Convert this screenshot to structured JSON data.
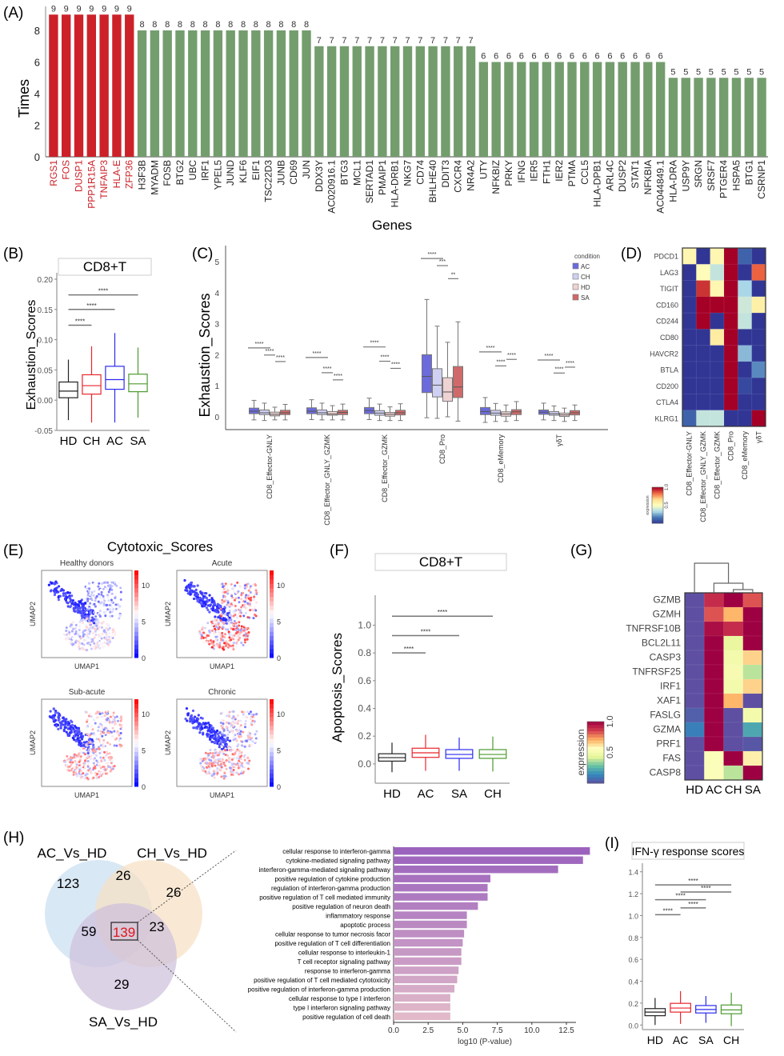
{
  "panels": {
    "a": "(A)",
    "b": "(B)",
    "c": "(C)",
    "d": "(D)",
    "e": "(E)",
    "f": "(F)",
    "g": "(G)",
    "h": "(H)",
    "i": "(I)"
  },
  "chart_data": [
    {
      "id": "A",
      "type": "bar",
      "title": "",
      "xlabel": "Genes",
      "ylabel": "Times",
      "ylim": [
        0,
        9
      ],
      "yticks": [
        0,
        2,
        4,
        6,
        8
      ],
      "highlight_color": "#cc2128",
      "bar_color": "#749d6e",
      "highlight_count": 7,
      "categories": [
        "RGS1",
        "FOS",
        "DUSP1",
        "PPP1R15A",
        "TNFAIP3",
        "HLA-E",
        "ZFP36",
        "H3F3B",
        "MYADM",
        "FOSB",
        "BTG2",
        "UBC",
        "IRF1",
        "YPEL5",
        "JUND",
        "KLF6",
        "EIF1",
        "TSC22D3",
        "JUNB",
        "CD69",
        "JUN",
        "DDX3Y",
        "AC020916.1",
        "BTG3",
        "MCL1",
        "SERTAD1",
        "PMAIP1",
        "HLA-DRB1",
        "NKG7",
        "CD74",
        "BHLHE40",
        "DDIT3",
        "CXCR4",
        "NR4A2",
        "UTY",
        "NFKBIZ",
        "PRKY",
        "IFNG",
        "IER5",
        "FTH1",
        "IER2",
        "PTMA",
        "CCL5",
        "HLA-DPB1",
        "ARL4C",
        "DUSP2",
        "STAT1",
        "NFKBIA",
        "AC044849.1",
        "HLA-DRA",
        "USP9Y",
        "SRGN",
        "SRSF7",
        "PTGER4",
        "HSPA5",
        "BTG1",
        "CSRNP1"
      ],
      "values": [
        9,
        9,
        9,
        9,
        9,
        9,
        9,
        8,
        8,
        8,
        8,
        8,
        8,
        8,
        8,
        8,
        8,
        8,
        8,
        8,
        8,
        7,
        7,
        7,
        7,
        7,
        7,
        7,
        7,
        7,
        7,
        7,
        7,
        7,
        6,
        6,
        6,
        6,
        6,
        6,
        6,
        6,
        6,
        6,
        6,
        6,
        6,
        6,
        6,
        5,
        5,
        5,
        5,
        5,
        5,
        5,
        5
      ]
    },
    {
      "id": "B",
      "type": "boxplot",
      "facet_title": "CD8+T",
      "ylabel": "Exhaustion_Scores",
      "ylim": [
        -0.05,
        0.2
      ],
      "yticks": [
        "-0.05",
        "0.00",
        "0.05",
        "0.10",
        "0.15",
        "0.20"
      ],
      "ytick_values": [
        -0.05,
        0,
        0.05,
        0.1,
        0.15,
        0.2
      ],
      "categories": [
        "HD",
        "CH",
        "AC",
        "SA"
      ],
      "colors": [
        "#222222",
        "#e8262b",
        "#2b2bf0",
        "#4d9a2e"
      ],
      "boxes": [
        {
          "min": -0.033,
          "q1": 0.004,
          "median": 0.015,
          "q3": 0.03,
          "max": 0.067
        },
        {
          "min": -0.037,
          "q1": 0.01,
          "median": 0.024,
          "q3": 0.042,
          "max": 0.089
        },
        {
          "min": -0.037,
          "q1": 0.018,
          "median": 0.034,
          "q3": 0.056,
          "max": 0.111
        },
        {
          "min": -0.029,
          "q1": 0.014,
          "median": 0.027,
          "q3": 0.043,
          "max": 0.087
        }
      ],
      "significance": [
        {
          "from": "HD",
          "to": "CH",
          "y": 0.124,
          "label": "****"
        },
        {
          "from": "HD",
          "to": "AC",
          "y": 0.15,
          "label": "****"
        },
        {
          "from": "HD",
          "to": "SA",
          "y": 0.174,
          "label": "****"
        }
      ]
    },
    {
      "id": "C",
      "type": "boxplot",
      "ylabel": "Exhaustion_Scores",
      "ylim": [
        -0.4,
        5.5
      ],
      "yticks": [
        0,
        1,
        2,
        3,
        4,
        5
      ],
      "legend_title": "condition",
      "legend_position": "top-right",
      "groups": [
        "AC",
        "CH",
        "HD",
        "SA"
      ],
      "group_colors": [
        "#6b6bdd",
        "#cfd0f2",
        "#efd2d2",
        "#d06a6a"
      ],
      "categories": [
        "CD8_Effector-GNLY",
        "CD8_Effector_GNLY_GZMK",
        "CD8_Effector_GZMK",
        "CD8_Pro",
        "CD8_eMemory",
        "γδT"
      ],
      "boxes": [
        [
          {
            "min": -0.1,
            "q1": 0.1,
            "median": 0.18,
            "q3": 0.28,
            "max": 0.53
          },
          {
            "min": -0.12,
            "q1": 0.07,
            "median": 0.13,
            "q3": 0.22,
            "max": 0.44
          },
          {
            "min": -0.1,
            "q1": 0.03,
            "median": 0.08,
            "q3": 0.15,
            "max": 0.31
          },
          {
            "min": -0.1,
            "q1": 0.07,
            "median": 0.13,
            "q3": 0.21,
            "max": 0.4
          }
        ],
        [
          {
            "min": -0.09,
            "q1": 0.1,
            "median": 0.18,
            "q3": 0.29,
            "max": 0.55
          },
          {
            "min": -0.1,
            "q1": 0.07,
            "median": 0.13,
            "q3": 0.22,
            "max": 0.44
          },
          {
            "min": -0.1,
            "q1": 0.05,
            "median": 0.09,
            "q3": 0.17,
            "max": 0.36
          },
          {
            "min": -0.1,
            "q1": 0.07,
            "median": 0.14,
            "q3": 0.21,
            "max": 0.41
          }
        ],
        [
          {
            "min": -0.09,
            "q1": 0.1,
            "median": 0.2,
            "q3": 0.3,
            "max": 0.6
          },
          {
            "min": -0.12,
            "q1": 0.05,
            "median": 0.12,
            "q3": 0.2,
            "max": 0.41
          },
          {
            "min": -0.12,
            "q1": 0.02,
            "median": 0.08,
            "q3": 0.14,
            "max": 0.32
          },
          {
            "min": -0.12,
            "q1": 0.06,
            "median": 0.13,
            "q3": 0.21,
            "max": 0.42
          }
        ],
        [
          {
            "min": -0.03,
            "q1": 0.78,
            "median": 1.3,
            "q3": 2.0,
            "max": 3.78
          },
          {
            "min": -0.05,
            "q1": 0.64,
            "median": 1.02,
            "q3": 1.55,
            "max": 2.92
          },
          {
            "min": 0.0,
            "q1": 0.5,
            "median": 0.8,
            "q3": 1.26,
            "max": 2.4
          },
          {
            "min": -0.14,
            "q1": 0.62,
            "median": 0.96,
            "q3": 1.62,
            "max": 3.06
          }
        ],
        [
          {
            "min": -0.18,
            "q1": 0.07,
            "median": 0.17,
            "q3": 0.3,
            "max": 0.62
          },
          {
            "min": -0.15,
            "q1": 0.05,
            "median": 0.12,
            "q3": 0.21,
            "max": 0.43
          },
          {
            "min": -0.15,
            "q1": 0.02,
            "median": 0.09,
            "q3": 0.16,
            "max": 0.38
          },
          {
            "min": -0.12,
            "q1": 0.07,
            "median": 0.16,
            "q3": 0.23,
            "max": 0.49
          }
        ],
        [
          {
            "min": -0.1,
            "q1": 0.08,
            "median": 0.15,
            "q3": 0.22,
            "max": 0.44
          },
          {
            "min": -0.12,
            "q1": 0.05,
            "median": 0.1,
            "q3": 0.17,
            "max": 0.35
          },
          {
            "min": -0.15,
            "q1": 0.01,
            "median": 0.06,
            "q3": 0.12,
            "max": 0.28
          },
          {
            "min": -0.12,
            "q1": 0.06,
            "median": 0.13,
            "q3": 0.2,
            "max": 0.38
          }
        ]
      ],
      "significance": [
        [
          {
            "g1": 0,
            "g2": 2,
            "y": 2.22,
            "label": "****"
          },
          {
            "g1": 1,
            "g2": 2,
            "y": 1.99,
            "label": "****"
          },
          {
            "g1": 2,
            "g2": 3,
            "y": 1.78,
            "label": "****"
          }
        ],
        [
          {
            "g1": 0,
            "g2": 2,
            "y": 1.91,
            "label": "****"
          },
          {
            "g1": 1,
            "g2": 2,
            "y": 1.42,
            "label": "****"
          },
          {
            "g1": 2,
            "g2": 3,
            "y": 1.19,
            "label": "****"
          }
        ],
        [
          {
            "g1": 0,
            "g2": 2,
            "y": 2.25,
            "label": "****"
          },
          {
            "g1": 1,
            "g2": 2,
            "y": 1.79,
            "label": "****"
          },
          {
            "g1": 2,
            "g2": 3,
            "y": 1.56,
            "label": "****"
          }
        ],
        [
          {
            "g1": 0,
            "g2": 2,
            "y": 5.1,
            "label": "****"
          },
          {
            "g1": 1,
            "g2": 2,
            "y": 4.87,
            "label": "***"
          },
          {
            "g1": 2,
            "g2": 3,
            "y": 4.45,
            "label": "**"
          }
        ],
        [
          {
            "g1": 0,
            "g2": 2,
            "y": 2.09,
            "label": "****"
          },
          {
            "g1": 1,
            "g2": 2,
            "y": 1.64,
            "label": "****"
          },
          {
            "g1": 2,
            "g2": 3,
            "y": 1.85,
            "label": "****"
          }
        ],
        [
          {
            "g1": 0,
            "g2": 2,
            "y": 1.83,
            "label": "****"
          },
          {
            "g1": 1,
            "g2": 2,
            "y": 1.41,
            "label": "****"
          },
          {
            "g1": 2,
            "g2": 3,
            "y": 1.6,
            "label": "****"
          }
        ]
      ]
    },
    {
      "id": "D",
      "type": "heatmap",
      "rows": [
        "PDCD1",
        "LAG3",
        "TIGIT",
        "CD160",
        "CD244",
        "CD80",
        "HAVCR2",
        "BTLA",
        "CD200",
        "CTLA4",
        "KLRG1"
      ],
      "columns": [
        "CD8_Effector-GNLY",
        "CD8_Effector_GNLY_GZMK",
        "CD8_Effector_GZMK",
        "CD8_Pro",
        "CD8_eMemory",
        "γδT"
      ],
      "colorbar_label": "expression",
      "colorbar_ticks": [
        "0.5",
        "1.0"
      ],
      "colorscale": "RdYlBu_r",
      "values": [
        [
          0.55,
          0.0,
          0.55,
          1.0,
          0.12,
          0.0
        ],
        [
          0.0,
          0.52,
          0.38,
          1.0,
          0.0,
          0.85
        ],
        [
          0.0,
          0.92,
          0.55,
          1.0,
          0.33,
          0.0
        ],
        [
          0.0,
          1.0,
          1.0,
          1.0,
          0.4,
          0.58
        ],
        [
          0.0,
          1.0,
          0.0,
          1.0,
          0.38,
          0.0
        ],
        [
          0.0,
          0.0,
          0.6,
          1.0,
          0.0,
          0.0
        ],
        [
          0.0,
          0.0,
          0.0,
          1.0,
          0.28,
          0.0
        ],
        [
          0.0,
          0.0,
          0.0,
          1.0,
          0.0,
          0.2
        ],
        [
          0.0,
          0.0,
          0.0,
          1.0,
          0.05,
          0.0
        ],
        [
          0.0,
          0.0,
          0.0,
          1.0,
          0.0,
          0.0
        ],
        [
          0.12,
          0.38,
          0.38,
          0.0,
          0.0,
          1.0
        ]
      ]
    },
    {
      "id": "E",
      "type": "scatter",
      "title": "Cytotoxic_Scores",
      "subplots": [
        "Healthy donors",
        "Acute",
        "Sub-acute",
        "Chronic"
      ],
      "xlabel": "UMAP1",
      "ylabel": "UMAP2",
      "colorbar_ticks": [
        "0",
        "5",
        "10"
      ],
      "colorscale": "bwr",
      "mean_score_level": [
        0.35,
        0.75,
        0.6,
        0.6
      ]
    },
    {
      "id": "F",
      "type": "boxplot",
      "facet_title": "CD8+T",
      "ylabel": "Apoptosis_Scores",
      "ylim": [
        -0.07,
        1.17
      ],
      "yticks": [
        "0.0",
        "0.2",
        "0.4",
        "0.6",
        "0.8",
        "1.0"
      ],
      "ytick_values": [
        0,
        0.2,
        0.4,
        0.6,
        0.8,
        1.0
      ],
      "categories": [
        "HD",
        "AC",
        "SA",
        "CH"
      ],
      "colors": [
        "#222222",
        "#e8262b",
        "#2b2bf0",
        "#4d9a2e"
      ],
      "boxes": [
        {
          "min": -0.06,
          "q1": 0.02,
          "median": 0.045,
          "q3": 0.073,
          "max": 0.153
        },
        {
          "min": -0.05,
          "q1": 0.047,
          "median": 0.08,
          "q3": 0.113,
          "max": 0.21
        },
        {
          "min": -0.05,
          "q1": 0.04,
          "median": 0.068,
          "q3": 0.103,
          "max": 0.19
        },
        {
          "min": -0.055,
          "q1": 0.04,
          "median": 0.068,
          "q3": 0.103,
          "max": 0.197
        }
      ],
      "significance": [
        {
          "from": "HD",
          "to": "AC",
          "y": 0.8,
          "label": "****"
        },
        {
          "from": "HD",
          "to": "SA",
          "y": 0.925,
          "label": "****"
        },
        {
          "from": "HD",
          "to": "CH",
          "y": 1.065,
          "label": "****"
        }
      ]
    },
    {
      "id": "G",
      "type": "heatmap",
      "rows": [
        "GZMB",
        "GZMH",
        "TNFRSF10B",
        "BCL2L11",
        "CASP3",
        "TNFRSF25",
        "IRF1",
        "XAF1",
        "FASLG",
        "GZMA",
        "PRF1",
        "FAS",
        "CASP8"
      ],
      "columns": [
        "HD",
        "AC",
        "CH",
        "SA"
      ],
      "colorbar_label": "expression",
      "colorbar_ticks": [
        "0.5",
        "1.0"
      ],
      "colorscale": "Spectral_r",
      "dendrogram": "top",
      "values": [
        [
          0.0,
          0.9,
          1.0,
          0.83
        ],
        [
          0.0,
          0.83,
          0.7,
          1.0
        ],
        [
          0.0,
          0.97,
          0.9,
          1.0
        ],
        [
          0.0,
          1.0,
          0.45,
          1.0
        ],
        [
          0.0,
          1.0,
          0.5,
          0.65
        ],
        [
          0.0,
          1.0,
          0.52,
          0.38
        ],
        [
          0.0,
          1.0,
          0.5,
          0.65
        ],
        [
          0.0,
          1.0,
          0.7,
          0.0
        ],
        [
          0.04,
          1.0,
          0.0,
          0.5
        ],
        [
          0.12,
          1.0,
          0.0,
          0.22
        ],
        [
          0.0,
          1.0,
          0.0,
          0.02
        ],
        [
          0.0,
          0.55,
          1.0,
          0.6
        ],
        [
          0.0,
          0.55,
          0.38,
          1.0
        ]
      ]
    },
    {
      "id": "H-venn",
      "type": "venn",
      "sets": [
        "AC_Vs_HD",
        "CH_Vs_HD",
        "SA_Vs_HD"
      ],
      "regions": {
        "AC_only": 123,
        "CH_only": 26,
        "SA_only": 29,
        "AC_CH": 26,
        "AC_SA": 59,
        "CH_SA": 23,
        "AC_CH_SA": 139
      },
      "set_colors": [
        "#cfe2f3",
        "#f7e0c2",
        "#cdbfdc"
      ],
      "highlight_color": "#e0141b"
    },
    {
      "id": "H-bar",
      "type": "bar",
      "orientation": "horizontal",
      "xlabel": "log10 (P-value)",
      "xlim": [
        0,
        15
      ],
      "xticks": [
        "0.0",
        "2.5",
        "5.0",
        "7.5",
        "10.0",
        "12.5"
      ],
      "xtick_values": [
        0,
        2.5,
        5,
        7.5,
        10,
        12.5
      ],
      "categories": [
        "cellular response to interferon-gamma",
        "cytokine-mediated signaling pathway",
        "interferon-gamma-mediated signaling pathway",
        "positive regulation of cytokine production",
        "regulation of interferon-gamma production",
        "positive regulation of T cell mediated immunity",
        "positive regulation of neuron death",
        "inflammatory response",
        "apoptotic process",
        "cellular response to tumor necrosis facor",
        "positive regulation of T cell differentiation",
        "cellular response to interleukin-1",
        "T cell receptor signaling pathway",
        "response to interferon-gamma",
        "positive regulation of T cell mediated cytotoxicity",
        "positive regulation of interferon-gamma production",
        "cellular response to type I interferon",
        "type I interferon signaling pathway",
        "positive regulation of cell death"
      ],
      "values": [
        14.2,
        13.7,
        11.9,
        7.0,
        6.8,
        6.8,
        6.1,
        5.3,
        5.3,
        5.1,
        5.0,
        4.9,
        4.9,
        4.7,
        4.6,
        4.4,
        4.1,
        4.1,
        4.1
      ],
      "color_start": "#9b63bd",
      "color_end": "#e1b9c9"
    },
    {
      "id": "I",
      "type": "boxplot",
      "facet_title": "IFN-γ response scores",
      "ylim": [
        -0.02,
        1.42
      ],
      "yticks": [
        "0.0",
        "0.2",
        "0.4",
        "0.6",
        "0.8",
        "1.0",
        "1.2",
        "1.4"
      ],
      "ytick_values": [
        0,
        0.2,
        0.4,
        0.6,
        0.8,
        1.0,
        1.2,
        1.4
      ],
      "categories": [
        "HD",
        "AC",
        "SA",
        "CH"
      ],
      "colors": [
        "#222222",
        "#e8262b",
        "#2b2bf0",
        "#4d9a2e"
      ],
      "boxes": [
        {
          "min": 0.0,
          "q1": 0.085,
          "median": 0.118,
          "q3": 0.15,
          "max": 0.247
        },
        {
          "min": 0.01,
          "q1": 0.118,
          "median": 0.155,
          "q3": 0.198,
          "max": 0.31
        },
        {
          "min": 0.02,
          "q1": 0.11,
          "median": 0.142,
          "q3": 0.178,
          "max": 0.265
        },
        {
          "min": -0.01,
          "q1": 0.103,
          "median": 0.138,
          "q3": 0.183,
          "max": 0.296
        }
      ],
      "significance": [
        {
          "from": "HD",
          "to": "AC",
          "y": 1.008,
          "label": "****"
        },
        {
          "from": "AC",
          "to": "SA",
          "y": 1.07,
          "label": "****"
        },
        {
          "from": "HD",
          "to": "SA",
          "y": 1.145,
          "label": "****"
        },
        {
          "from": "AC",
          "to": "CH",
          "y": 1.215,
          "label": "****"
        },
        {
          "from": "HD",
          "to": "CH",
          "y": 1.28,
          "label": "****"
        }
      ]
    }
  ]
}
